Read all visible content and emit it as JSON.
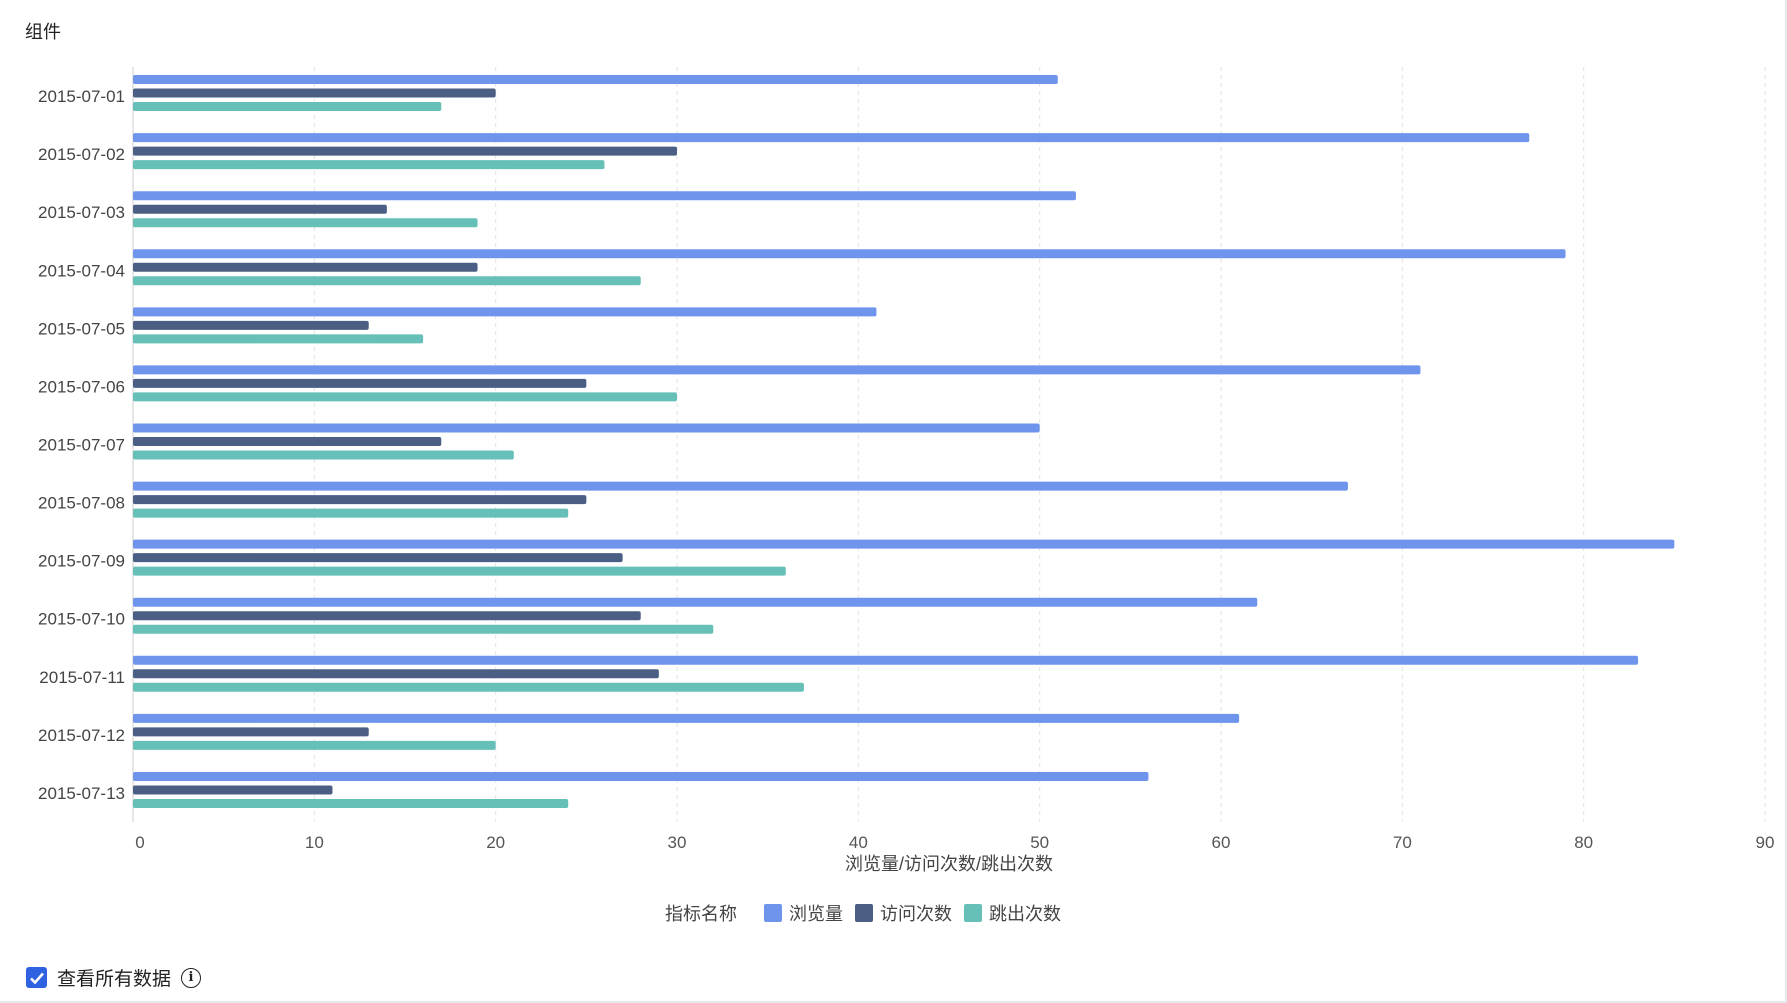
{
  "title": "组件",
  "footer": {
    "checkbox_label": "查看所有数据",
    "checked": true
  },
  "chart_data": {
    "type": "bar",
    "orientation": "horizontal",
    "categories": [
      "2015-07-01",
      "2015-07-02",
      "2015-07-03",
      "2015-07-04",
      "2015-07-05",
      "2015-07-06",
      "2015-07-07",
      "2015-07-08",
      "2015-07-09",
      "2015-07-10",
      "2015-07-11",
      "2015-07-12",
      "2015-07-13"
    ],
    "series": [
      {
        "name": "浏览量",
        "color": "#6f94ec",
        "values": [
          51,
          77,
          52,
          79,
          41,
          71,
          50,
          67,
          85,
          62,
          83,
          61,
          56
        ]
      },
      {
        "name": "访问次数",
        "color": "#4b5f84",
        "values": [
          20,
          30,
          14,
          19,
          13,
          25,
          17,
          25,
          27,
          28,
          29,
          13,
          11
        ]
      },
      {
        "name": "跳出次数",
        "color": "#66c0b8",
        "values": [
          17,
          26,
          19,
          28,
          16,
          30,
          21,
          24,
          36,
          32,
          37,
          20,
          24
        ]
      }
    ],
    "xlabel": "浏览量/访问次数/跳出次数",
    "xlim": [
      0,
      90
    ],
    "xticks": [
      0,
      10,
      20,
      30,
      40,
      50,
      60,
      70,
      80,
      90
    ],
    "grid": true,
    "legend_title": "指标名称",
    "legend_position": "bottom"
  }
}
